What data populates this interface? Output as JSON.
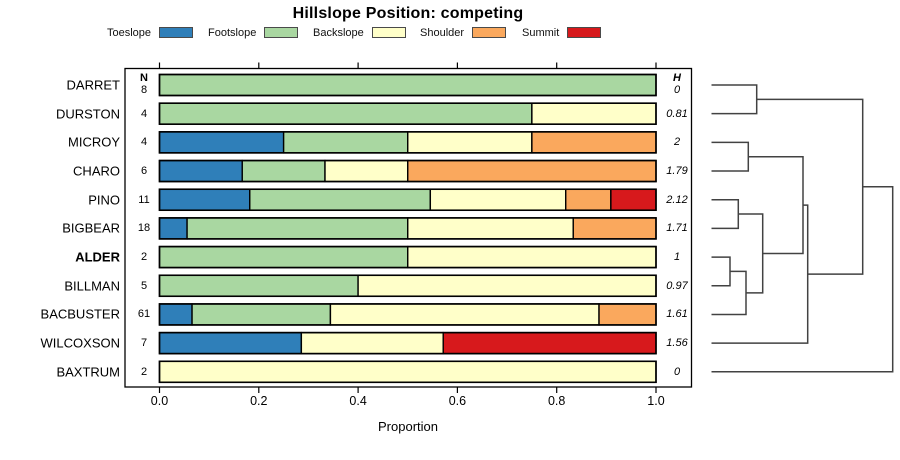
{
  "title": "Hillslope Position: competing",
  "legend": [
    {
      "label": "Toeslope",
      "color": "#2F7FB9"
    },
    {
      "label": "Footslope",
      "color": "#A9D7A1"
    },
    {
      "label": "Backslope",
      "color": "#FFFFC9"
    },
    {
      "label": "Shoulder",
      "color": "#FAA85D"
    },
    {
      "label": "Summit",
      "color": "#D7191C"
    }
  ],
  "columns": {
    "n_header": "N",
    "h_header": "H"
  },
  "axis": {
    "label": "Proportion",
    "tick_labels": [
      "0.0",
      "0.2",
      "0.4",
      "0.6",
      "0.8",
      "1.0"
    ],
    "tick_values": [
      0,
      0.2,
      0.4,
      0.6,
      0.8,
      1.0
    ],
    "range": [
      0,
      1
    ]
  },
  "chart_data": {
    "type": "bar",
    "subtype": "stacked-horizontal-proportion",
    "title": "Hillslope Position: competing",
    "xlabel": "Proportion",
    "xlim": [
      0,
      1
    ],
    "legend_position": "top",
    "grid": false,
    "categories": [
      "DARRET",
      "DURSTON",
      "MICROY",
      "CHARO",
      "PINO",
      "BIGBEAR",
      "ALDER",
      "BILLMAN",
      "BACBUSTER",
      "WILCOXSON",
      "BAXTRUM"
    ],
    "bold_category": "ALDER",
    "n": [
      8,
      4,
      4,
      6,
      11,
      18,
      2,
      5,
      61,
      7,
      2
    ],
    "entropy_h": [
      "0",
      "0.81",
      "2",
      "1.79",
      "2.12",
      "1.71",
      "1",
      "0.97",
      "1.61",
      "1.56",
      "0"
    ],
    "series": [
      {
        "name": "Toeslope",
        "color": "#2F7FB9",
        "counts": [
          0,
          0,
          1,
          1,
          2,
          1,
          0,
          0,
          4,
          2,
          0
        ]
      },
      {
        "name": "Footslope",
        "color": "#A9D7A1",
        "counts": [
          8,
          3,
          1,
          1,
          4,
          8,
          1,
          2,
          17,
          0,
          0
        ]
      },
      {
        "name": "Backslope",
        "color": "#FFFFC9",
        "counts": [
          0,
          1,
          1,
          1,
          3,
          6,
          1,
          3,
          33,
          2,
          2
        ]
      },
      {
        "name": "Shoulder",
        "color": "#FAA85D",
        "counts": [
          0,
          0,
          1,
          3,
          1,
          3,
          0,
          0,
          7,
          0,
          0
        ]
      },
      {
        "name": "Summit",
        "color": "#D7191C",
        "counts": [
          0,
          0,
          0,
          0,
          1,
          0,
          0,
          0,
          0,
          3,
          0
        ]
      }
    ]
  },
  "dendrogram": {
    "orientation": "right",
    "leaf_x": 711.5,
    "merges": [
      {
        "a": "DARRET",
        "b": "DURSTON",
        "x": 756.7
      },
      {
        "a": "MICROY",
        "b": "CHARO",
        "x": 748.3
      },
      {
        "a": "PINO",
        "b": "BIGBEAR",
        "x": 738.3
      },
      {
        "a": "ALDER",
        "b": "BILLMAN",
        "x": 730.0
      },
      {
        "a": "#3",
        "b": "BACBUSTER",
        "x": 746.0
      },
      {
        "a": "#2",
        "b": "#4",
        "x": 762.7
      },
      {
        "a": "#1",
        "b": "#5",
        "x": 803.0
      },
      {
        "a": "#6",
        "b": "WILCOXSON",
        "x": 807.7
      },
      {
        "a": "#0",
        "b": "#7",
        "x": 862.7
      },
      {
        "a": "#8",
        "b": "BAXTRUM",
        "x": 892.7
      }
    ]
  }
}
